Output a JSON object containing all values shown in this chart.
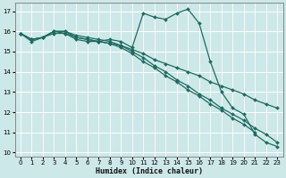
{
  "title": "",
  "xlabel": "Humidex (Indice chaleur)",
  "ylabel": "",
  "xlim": [
    -0.5,
    23.5
  ],
  "ylim": [
    9.8,
    17.4
  ],
  "yticks": [
    10,
    11,
    12,
    13,
    14,
    15,
    16,
    17
  ],
  "xticks": [
    0,
    1,
    2,
    3,
    4,
    5,
    6,
    7,
    8,
    9,
    10,
    11,
    12,
    13,
    14,
    15,
    16,
    17,
    18,
    19,
    20,
    21,
    22,
    23
  ],
  "bg_color": "#cde8e8",
  "grid_color": "#ffffff",
  "line_color": "#1e6b60",
  "series": [
    {
      "x": [
        0,
        1,
        2,
        3,
        4,
        5,
        6,
        7,
        8,
        9,
        10,
        11,
        12,
        13,
        14,
        15,
        16,
        17,
        18,
        19,
        20,
        21,
        22,
        23
      ],
      "y": [
        15.9,
        15.5,
        15.7,
        15.9,
        15.9,
        15.6,
        15.5,
        15.5,
        15.6,
        15.5,
        15.2,
        16.9,
        16.7,
        16.6,
        16.9,
        17.1,
        16.4,
        14.5,
        13.0,
        12.2,
        11.9,
        10.9,
        10.5,
        10.3
      ]
    },
    {
      "x": [
        0,
        1,
        2,
        3,
        4,
        5,
        6,
        7,
        8,
        9,
        10,
        11,
        12,
        13,
        14,
        15,
        16,
        17,
        18,
        19,
        20,
        21
      ],
      "y": [
        15.9,
        15.6,
        15.7,
        16.0,
        15.9,
        15.7,
        15.6,
        15.5,
        15.4,
        15.2,
        14.9,
        14.5,
        14.2,
        13.8,
        13.5,
        13.1,
        12.8,
        12.4,
        12.1,
        11.7,
        11.4,
        11.0
      ]
    },
    {
      "x": [
        0,
        1,
        2,
        3,
        4,
        5,
        6,
        7,
        8,
        9,
        10,
        11,
        12,
        13,
        14,
        15,
        16,
        17,
        18,
        19,
        20,
        21,
        22,
        23
      ],
      "y": [
        15.9,
        15.6,
        15.7,
        16.0,
        16.0,
        15.7,
        15.6,
        15.5,
        15.4,
        15.3,
        15.0,
        14.7,
        14.3,
        14.0,
        13.6,
        13.3,
        12.9,
        12.6,
        12.2,
        11.9,
        11.6,
        11.2,
        10.9,
        10.5
      ]
    },
    {
      "x": [
        0,
        1,
        2,
        3,
        4,
        5,
        6,
        7,
        8,
        9,
        10,
        11,
        12,
        13,
        14,
        15,
        16,
        17,
        18,
        19,
        20,
        21,
        22,
        23
      ],
      "y": [
        15.9,
        15.6,
        15.7,
        16.0,
        16.0,
        15.8,
        15.7,
        15.6,
        15.5,
        15.3,
        15.1,
        14.9,
        14.6,
        14.4,
        14.2,
        14.0,
        13.8,
        13.5,
        13.3,
        13.1,
        12.9,
        12.6,
        12.4,
        12.2
      ]
    }
  ]
}
